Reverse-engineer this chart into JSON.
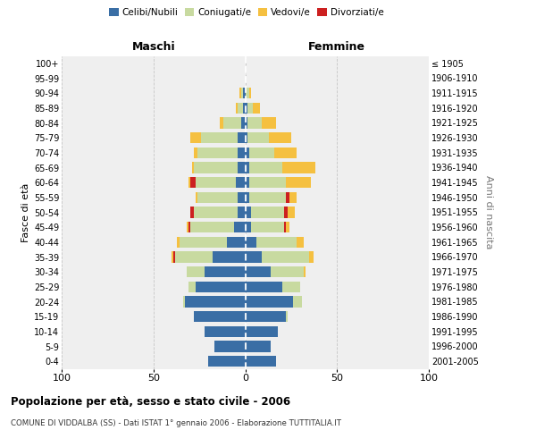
{
  "age_groups": [
    "0-4",
    "5-9",
    "10-14",
    "15-19",
    "20-24",
    "25-29",
    "30-34",
    "35-39",
    "40-44",
    "45-49",
    "50-54",
    "55-59",
    "60-64",
    "65-69",
    "70-74",
    "75-79",
    "80-84",
    "85-89",
    "90-94",
    "95-99",
    "100+"
  ],
  "birth_years": [
    "2001-2005",
    "1996-2000",
    "1991-1995",
    "1986-1990",
    "1981-1985",
    "1976-1980",
    "1971-1975",
    "1966-1970",
    "1961-1965",
    "1956-1960",
    "1951-1955",
    "1946-1950",
    "1941-1945",
    "1936-1940",
    "1931-1935",
    "1926-1930",
    "1921-1925",
    "1916-1920",
    "1911-1915",
    "1906-1910",
    "≤ 1905"
  ],
  "males": {
    "celibi": [
      20,
      17,
      22,
      28,
      33,
      27,
      22,
      18,
      10,
      6,
      4,
      4,
      5,
      4,
      4,
      4,
      2,
      1,
      1,
      0,
      0
    ],
    "coniugati": [
      0,
      0,
      0,
      0,
      1,
      4,
      10,
      20,
      26,
      24,
      24,
      22,
      22,
      24,
      22,
      20,
      10,
      3,
      1,
      0,
      0
    ],
    "vedovi": [
      0,
      0,
      0,
      0,
      0,
      0,
      0,
      1,
      1,
      1,
      0,
      1,
      1,
      1,
      2,
      6,
      2,
      1,
      1,
      0,
      0
    ],
    "divorziati": [
      0,
      0,
      0,
      0,
      0,
      0,
      0,
      1,
      0,
      1,
      2,
      0,
      3,
      0,
      0,
      0,
      0,
      0,
      0,
      0,
      0
    ]
  },
  "females": {
    "nubili": [
      17,
      14,
      18,
      22,
      26,
      20,
      14,
      9,
      6,
      3,
      3,
      2,
      2,
      2,
      2,
      1,
      1,
      1,
      0,
      0,
      0
    ],
    "coniugate": [
      0,
      0,
      0,
      1,
      5,
      10,
      18,
      26,
      22,
      18,
      18,
      20,
      20,
      18,
      14,
      12,
      8,
      3,
      2,
      0,
      0
    ],
    "vedove": [
      0,
      0,
      0,
      0,
      0,
      0,
      1,
      2,
      4,
      2,
      4,
      4,
      14,
      18,
      12,
      12,
      8,
      4,
      1,
      0,
      0
    ],
    "divorziate": [
      0,
      0,
      0,
      0,
      0,
      0,
      0,
      0,
      0,
      1,
      2,
      2,
      0,
      0,
      0,
      0,
      0,
      0,
      0,
      0,
      0
    ]
  },
  "colors": {
    "celibi": "#3a6ea5",
    "coniugati": "#c8daa0",
    "vedovi": "#f5c040",
    "divorziati": "#cc2020"
  },
  "xlim": 100,
  "title": "Popolazione per età, sesso e stato civile - 2006",
  "subtitle": "COMUNE DI VIDDALBA (SS) - Dati ISTAT 1° gennaio 2006 - Elaborazione TUTTITALIA.IT",
  "xlabel_left": "Maschi",
  "xlabel_right": "Femmine",
  "ylabel_left": "Fasce di età",
  "ylabel_right": "Anni di nascita",
  "bg_color": "#f0f0f0",
  "plot_bg": "#efefef"
}
